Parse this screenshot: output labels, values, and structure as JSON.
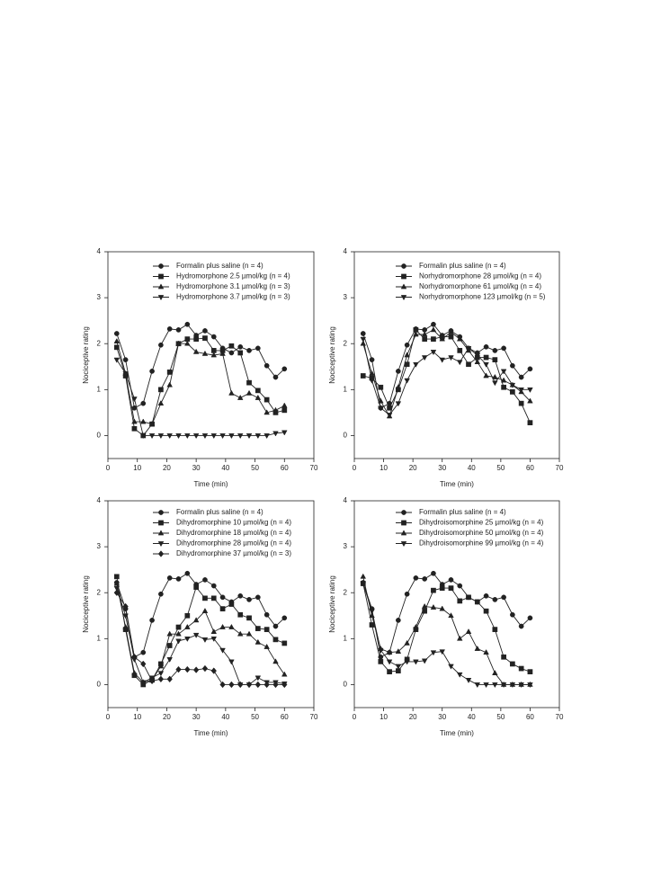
{
  "chart_data": [
    {
      "type": "line",
      "x_label": "Time (min)",
      "y_label": "Nociceptive rating",
      "x": [
        3,
        6,
        9,
        12,
        15,
        18,
        21,
        24,
        27,
        30,
        33,
        36,
        39,
        42,
        45,
        48,
        51,
        54,
        57,
        60
      ],
      "xlim": [
        0,
        70
      ],
      "xticks": [
        0,
        10,
        20,
        30,
        40,
        50,
        60,
        70
      ],
      "ylim": [
        -0.5,
        4
      ],
      "yticks": [
        0,
        1,
        2,
        3,
        4
      ],
      "series": [
        {
          "name": "Formalin plus saline (n = 4)",
          "color": "#222222",
          "marker": "circle",
          "values": [
            2.22,
            1.65,
            0.6,
            0.7,
            1.4,
            1.97,
            2.32,
            2.3,
            2.42,
            2.18,
            2.28,
            2.15,
            1.9,
            1.8,
            1.93,
            1.85,
            1.9,
            1.52,
            1.27,
            1.45
          ]
        },
        {
          "name": "Hydromorphone 2.5 µmol/kg (n = 4)",
          "color": "#222222",
          "marker": "square",
          "values": [
            1.92,
            1.3,
            0.15,
            0,
            0.25,
            1.0,
            1.38,
            2.0,
            2.1,
            2.1,
            2.12,
            1.85,
            1.85,
            1.95,
            1.8,
            1.15,
            0.98,
            0.78,
            0.5,
            0.55
          ]
        },
        {
          "name": "Hydromorphone 3.1 µmol/kg (n = 3)",
          "color": "#222222",
          "marker": "triangle-up",
          "values": [
            2.05,
            1.35,
            0.3,
            0.3,
            0.25,
            0.7,
            1.1,
            2.0,
            2.0,
            1.82,
            1.78,
            1.75,
            1.78,
            0.92,
            0.82,
            0.92,
            0.82,
            0.5,
            0.55,
            0.65
          ]
        },
        {
          "name": "Hydromorphone 3.7 µmol/kg (n = 3)",
          "color": "#222222",
          "marker": "triangle-down",
          "values": [
            1.65,
            1.35,
            0.8,
            0,
            0,
            0,
            0,
            0,
            0,
            0,
            0,
            0,
            0,
            0,
            0,
            0,
            0,
            0,
            0.05,
            0.07
          ]
        }
      ]
    },
    {
      "type": "line",
      "x_label": "Time (min)",
      "y_label": "Nociceptive rating",
      "x": [
        3,
        6,
        9,
        12,
        15,
        18,
        21,
        24,
        27,
        30,
        33,
        36,
        39,
        42,
        45,
        48,
        51,
        54,
        57,
        60
      ],
      "xlim": [
        0,
        70
      ],
      "xticks": [
        0,
        10,
        20,
        30,
        40,
        50,
        60,
        70
      ],
      "ylim": [
        -0.5,
        4
      ],
      "yticks": [
        0,
        1,
        2,
        3,
        4
      ],
      "series": [
        {
          "name": "Formalin plus saline (n = 4)",
          "color": "#222222",
          "marker": "circle",
          "values": [
            2.22,
            1.65,
            0.6,
            0.7,
            1.4,
            1.97,
            2.32,
            2.3,
            2.42,
            2.18,
            2.28,
            2.15,
            1.9,
            1.8,
            1.93,
            1.85,
            1.9,
            1.52,
            1.27,
            1.45
          ]
        },
        {
          "name": "Norhydromorphone 28 µmol/kg (n = 4)",
          "color": "#222222",
          "marker": "square",
          "values": [
            1.3,
            1.25,
            1.05,
            0.6,
            1.0,
            1.55,
            2.3,
            2.1,
            2.1,
            2.15,
            2.15,
            1.85,
            1.55,
            1.7,
            1.7,
            1.65,
            1.05,
            0.95,
            0.7,
            0.28
          ]
        },
        {
          "name": "Norhydromorphone 61 µmol/kg (n = 4)",
          "color": "#222222",
          "marker": "triangle-up",
          "values": [
            2.0,
            1.35,
            0.75,
            0.42,
            1.05,
            1.75,
            2.2,
            2.2,
            2.3,
            2.1,
            2.25,
            2.1,
            1.85,
            1.6,
            1.3,
            1.27,
            1.2,
            1.1,
            0.95,
            0.75
          ]
        },
        {
          "name": "Norhydromorphone 123 µmol/kg (n = 5)",
          "color": "#222222",
          "marker": "triangle-down",
          "values": [
            2.1,
            1.2,
            0.6,
            0.45,
            0.7,
            1.2,
            1.55,
            1.7,
            1.82,
            1.65,
            1.7,
            1.6,
            1.9,
            1.75,
            1.55,
            1.15,
            1.4,
            1.1,
            1.0,
            1.0
          ]
        }
      ]
    },
    {
      "type": "line",
      "x_label": "Time (min)",
      "y_label": "Nociceptive rating",
      "x": [
        3,
        6,
        9,
        12,
        15,
        18,
        21,
        24,
        27,
        30,
        33,
        36,
        39,
        42,
        45,
        48,
        51,
        54,
        57,
        60
      ],
      "xlim": [
        0,
        70
      ],
      "xticks": [
        0,
        10,
        20,
        30,
        40,
        50,
        60,
        70
      ],
      "ylim": [
        -0.5,
        4
      ],
      "yticks": [
        0,
        1,
        2,
        3,
        4
      ],
      "series": [
        {
          "name": "Formalin plus saline (n = 4)",
          "color": "#222222",
          "marker": "circle",
          "values": [
            2.22,
            1.65,
            0.6,
            0.7,
            1.4,
            1.97,
            2.32,
            2.3,
            2.42,
            2.18,
            2.28,
            2.15,
            1.9,
            1.8,
            1.93,
            1.85,
            1.9,
            1.52,
            1.27,
            1.45
          ]
        },
        {
          "name": "Dihydromorphine 10 µmol/kg (n = 4)",
          "color": "#222222",
          "marker": "square",
          "values": [
            2.35,
            1.2,
            0.2,
            0,
            0.1,
            0.45,
            0.85,
            1.25,
            1.5,
            2.12,
            1.88,
            1.88,
            1.65,
            1.75,
            1.52,
            1.45,
            1.22,
            1.2,
            0.98,
            0.9
          ]
        },
        {
          "name": "Dihydromorphine 18 µmol/kg (n = 4)",
          "color": "#222222",
          "marker": "triangle-up",
          "values": [
            2.2,
            1.25,
            0.25,
            0.05,
            0.1,
            0.4,
            1.1,
            1.1,
            1.25,
            1.4,
            1.6,
            1.15,
            1.25,
            1.25,
            1.1,
            1.1,
            0.92,
            0.82,
            0.5,
            0.22
          ]
        },
        {
          "name": "Dihydromorphine 28 µmol/kg (n = 4)",
          "color": "#222222",
          "marker": "triangle-down",
          "values": [
            2.1,
            1.5,
            0.55,
            0.05,
            0.15,
            0.25,
            0.55,
            0.95,
            1.0,
            1.08,
            0.98,
            1.0,
            0.75,
            0.5,
            0,
            0,
            0.15,
            0.05,
            0.05,
            0.02
          ]
        },
        {
          "name": "Dihydromorphine 37 µmol/kg (n = 3)",
          "color": "#222222",
          "marker": "diamond",
          "values": [
            2.0,
            1.7,
            0.6,
            0.45,
            0.08,
            0.12,
            0.12,
            0.33,
            0.33,
            0.32,
            0.35,
            0.3,
            0,
            0,
            0,
            0,
            0,
            0,
            0,
            0
          ]
        }
      ]
    },
    {
      "type": "line",
      "x_label": "Time (min)",
      "y_label": "Nociceptive rating",
      "x": [
        3,
        6,
        9,
        12,
        15,
        18,
        21,
        24,
        27,
        30,
        33,
        36,
        39,
        42,
        45,
        48,
        51,
        54,
        57,
        60
      ],
      "xlim": [
        0,
        70
      ],
      "xticks": [
        0,
        10,
        20,
        30,
        40,
        50,
        60,
        70
      ],
      "ylim": [
        -0.5,
        4
      ],
      "yticks": [
        0,
        1,
        2,
        3,
        4
      ],
      "series": [
        {
          "name": "Formalin plus saline (n = 4)",
          "color": "#222222",
          "marker": "circle",
          "values": [
            2.22,
            1.65,
            0.6,
            0.7,
            1.4,
            1.97,
            2.32,
            2.3,
            2.42,
            2.18,
            2.28,
            2.15,
            1.9,
            1.8,
            1.93,
            1.85,
            1.9,
            1.52,
            1.27,
            1.45
          ]
        },
        {
          "name": "Dihydroisomorphine 25 µmol/kg (n = 4)",
          "color": "#222222",
          "marker": "square",
          "values": [
            2.2,
            1.3,
            0.5,
            0.28,
            0.3,
            0.55,
            1.2,
            1.6,
            2.05,
            2.1,
            2.1,
            1.82,
            1.9,
            1.8,
            1.6,
            1.2,
            0.6,
            0.45,
            0.35,
            0.28
          ]
        },
        {
          "name": "Dihydroisomorphine 50 µmol/kg (n = 4)",
          "color": "#222222",
          "marker": "triangle-up",
          "values": [
            2.35,
            1.5,
            0.78,
            0.7,
            0.72,
            0.9,
            1.25,
            1.7,
            1.68,
            1.65,
            1.5,
            1.0,
            1.15,
            0.78,
            0.7,
            0.25,
            0,
            0,
            0,
            0
          ]
        },
        {
          "name": "Dihydroisomorphine 99 µmol/kg (n = 4)",
          "color": "#222222",
          "marker": "triangle-down",
          "values": [
            2.2,
            1.6,
            0.75,
            0.5,
            0.4,
            0.5,
            0.5,
            0.52,
            0.7,
            0.72,
            0.4,
            0.22,
            0.1,
            0,
            0,
            0,
            0,
            0,
            0,
            0
          ]
        }
      ]
    }
  ]
}
